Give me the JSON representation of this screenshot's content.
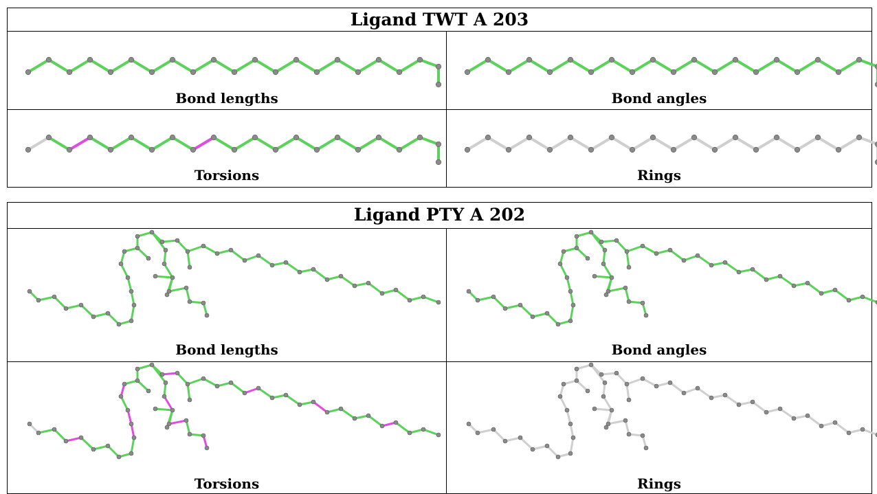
{
  "colors": {
    "ok": "#5bd35b",
    "outlier": "#e04ce0",
    "neutral": "#cfcfcf",
    "atom": "#8a8a8a"
  },
  "panels": [
    {
      "title": "Ligand TWT A 203",
      "cells": [
        {
          "label": "Bond lengths",
          "scheme": "green"
        },
        {
          "label": "Bond angles",
          "scheme": "green"
        },
        {
          "label": "Torsions",
          "scheme": "torsion"
        },
        {
          "label": "Rings",
          "scheme": "grey"
        }
      ]
    },
    {
      "title": "Ligand PTY A 202",
      "cells": [
        {
          "label": "Bond lengths",
          "scheme": "green"
        },
        {
          "label": "Bond angles",
          "scheme": "green"
        },
        {
          "label": "Torsions",
          "scheme": "torsion"
        },
        {
          "label": "Rings",
          "scheme": "grey"
        }
      ]
    }
  ]
}
